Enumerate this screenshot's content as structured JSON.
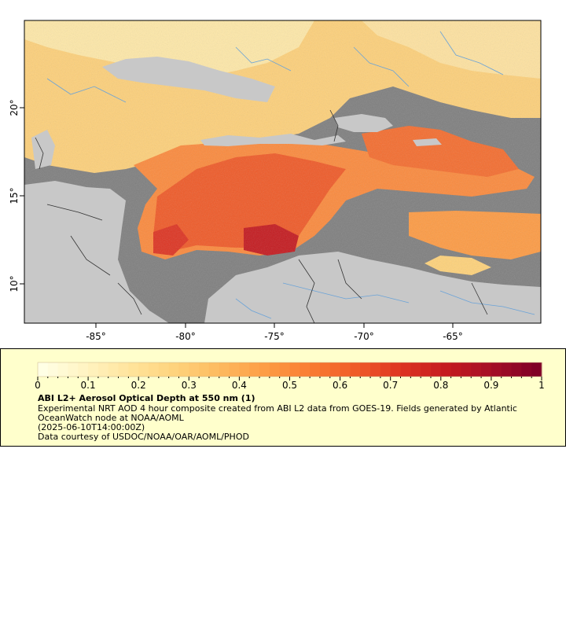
{
  "map": {
    "x_ticks": [
      "-85°",
      "-80°",
      "-75°",
      "-70°",
      "-65°"
    ],
    "y_ticks": [
      "20°",
      "15°",
      "10°"
    ],
    "colors": {
      "ocean_no_data": "#7f7f7f",
      "land": "#c8c8c8",
      "rivers": "#6aa3d8",
      "borders": "#333333"
    }
  },
  "legend": {
    "ticks": [
      "0",
      "0.1",
      "0.2",
      "0.3",
      "0.4",
      "0.5",
      "0.6",
      "0.7",
      "0.8",
      "0.9",
      "1"
    ],
    "title": "ABI L2+ Aerosol Optical Depth at 550 nm (1)",
    "description": "Experimental NRT AOD 4 hour composite created from ABI L2 data from GOES-19. Fields generated by Atlantic OceanWatch node at NOAA/AOML",
    "date": "(2025-06-10T14:00:00Z)",
    "credit": "Data courtesy of USDOC/NOAA/OAR/AOML/PHOD",
    "colormap": [
      "#ffffe5",
      "#fff3c0",
      "#ffe39a",
      "#fed27a",
      "#fdb85e",
      "#fd9b44",
      "#f97b32",
      "#ef5a28",
      "#dd3422",
      "#c41a1f",
      "#a50f26",
      "#800026"
    ]
  }
}
